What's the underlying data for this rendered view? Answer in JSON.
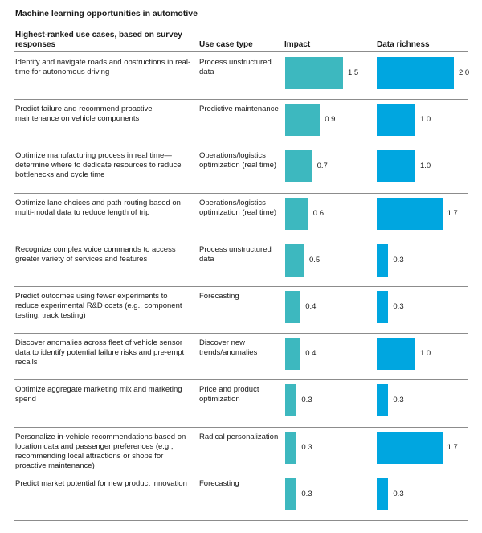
{
  "title": "Machine learning opportunities in automotive",
  "headers": {
    "use_case": "Highest-ranked use cases, based on survey responses",
    "use_case_type": "Use case type",
    "impact": "Impact",
    "data_richness": "Data richness"
  },
  "colors": {
    "impact": "#3db8bf",
    "data_richness": "#00a6e0"
  },
  "chart_data": {
    "type": "bar",
    "title": "Machine learning opportunities in automotive",
    "categories": [
      "Identify and navigate roads and obstructions in real-time for autonomous driving",
      "Predict failure and recommend proactive maintenance on vehicle components",
      "Optimize manufacturing process in real time—determine where to dedicate resources to reduce bottlenecks and cycle time",
      "Optimize lane choices and path routing based on multi-modal data to reduce length of trip",
      "Recognize complex voice commands to access greater variety of services and features",
      "Predict outcomes using fewer experiments to reduce experimental R&D costs (e.g., component testing, track testing)",
      "Discover anomalies across fleet of vehicle sensor data to identify potential failure risks and pre-empt recalls",
      "Optimize aggregate marketing mix and marketing spend",
      "Personalize in-vehicle recommendations based on location data and passenger preferences (e.g., recommending local attractions or shops for proactive maintenance)",
      "Predict market potential for new product innovation"
    ],
    "use_case_types": [
      "Process unstructured data",
      "Predictive maintenance",
      "Operations/logistics optimization (real time)",
      "Operations/logistics optimization (real time)",
      "Process unstructured data",
      "Forecasting",
      "Discover new trends/anomalies",
      "Price and product optimization",
      "Radical personalization",
      "Forecasting"
    ],
    "series": [
      {
        "name": "Impact",
        "values": [
          1.5,
          0.9,
          0.7,
          0.6,
          0.5,
          0.4,
          0.4,
          0.3,
          0.3,
          0.3
        ]
      },
      {
        "name": "Data richness",
        "values": [
          2.0,
          1.0,
          1.0,
          1.7,
          0.3,
          0.3,
          1.0,
          0.3,
          1.7,
          0.3
        ]
      }
    ],
    "value_labels": {
      "impact": [
        "1.5",
        "0.9",
        "0.7",
        "0.6",
        "0.5",
        "0.4",
        "0.4",
        "0.3",
        "0.3",
        "0.3"
      ],
      "data_richness": [
        "2.0",
        "1.0",
        "1.0",
        "1.7",
        "0.3",
        "0.3",
        "1.0",
        "0.3",
        "1.7",
        "0.3"
      ]
    },
    "orientation": "horizontal",
    "grid": false,
    "legend": "none"
  }
}
